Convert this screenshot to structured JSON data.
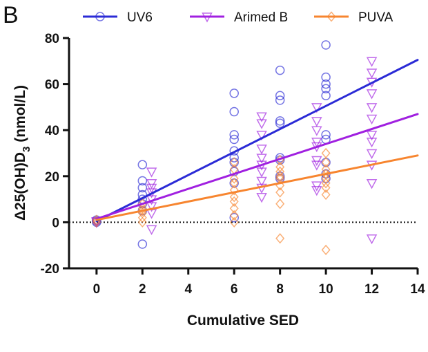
{
  "panel_label": "B",
  "chart_data": {
    "type": "scatter",
    "title": "",
    "xlabel": "Cumulative SED",
    "ylabel_main": "Δ25(OH)D",
    "ylabel_sub": "3",
    "ylabel_unit": " (nmol/L)",
    "xlim": [
      -1.2,
      14
    ],
    "ylim": [
      -20,
      80
    ],
    "xticks": [
      0,
      2,
      4,
      6,
      8,
      10,
      12,
      14
    ],
    "yticks": [
      -20,
      0,
      20,
      40,
      60,
      80
    ],
    "zero_reference_line": true,
    "legend_position": "top",
    "series": [
      {
        "name": "UV6",
        "color": "#2b2bd6",
        "marker": "circle",
        "fit": {
          "slope": 5.0,
          "intercept": 0.5
        },
        "points": [
          [
            0,
            0.5
          ],
          [
            0,
            0
          ],
          [
            0,
            1
          ],
          [
            2,
            25
          ],
          [
            2,
            18
          ],
          [
            2,
            15
          ],
          [
            2,
            12
          ],
          [
            2,
            10
          ],
          [
            2,
            8
          ],
          [
            2,
            5
          ],
          [
            2,
            -9.5
          ],
          [
            6,
            56
          ],
          [
            6,
            48
          ],
          [
            6,
            38
          ],
          [
            6,
            36
          ],
          [
            6,
            31
          ],
          [
            6,
            28
          ],
          [
            6,
            26
          ],
          [
            6,
            22
          ],
          [
            6,
            17
          ],
          [
            6,
            2
          ],
          [
            8,
            66
          ],
          [
            8,
            55
          ],
          [
            8,
            53
          ],
          [
            8,
            44
          ],
          [
            8,
            43
          ],
          [
            8,
            28
          ],
          [
            8,
            27
          ],
          [
            8,
            20
          ],
          [
            8,
            19
          ],
          [
            10,
            77
          ],
          [
            10,
            63
          ],
          [
            10,
            60
          ],
          [
            10,
            58
          ],
          [
            10,
            55
          ],
          [
            10,
            38
          ],
          [
            10,
            36
          ],
          [
            10,
            26
          ],
          [
            10,
            21
          ],
          [
            10,
            19
          ]
        ]
      },
      {
        "name": "Arimed B",
        "color": "#a020e0",
        "marker": "triangle-down",
        "fit": {
          "slope": 3.25,
          "intercept": 1.5
        },
        "points": [
          [
            0,
            0.5
          ],
          [
            0,
            0
          ],
          [
            2.4,
            22
          ],
          [
            2.4,
            17
          ],
          [
            2.4,
            15
          ],
          [
            2.4,
            13
          ],
          [
            2.4,
            10
          ],
          [
            2.4,
            7
          ],
          [
            2.4,
            4
          ],
          [
            2.4,
            -3
          ],
          [
            7.2,
            46
          ],
          [
            7.2,
            43
          ],
          [
            7.2,
            38
          ],
          [
            7.2,
            32
          ],
          [
            7.2,
            28
          ],
          [
            7.2,
            25
          ],
          [
            7.2,
            22
          ],
          [
            7.2,
            18
          ],
          [
            7.2,
            15
          ],
          [
            7.2,
            11
          ],
          [
            9.6,
            50
          ],
          [
            9.6,
            44
          ],
          [
            9.6,
            40
          ],
          [
            9.6,
            35
          ],
          [
            9.6,
            33
          ],
          [
            9.6,
            27
          ],
          [
            9.6,
            25
          ],
          [
            9.6,
            16
          ],
          [
            9.6,
            14
          ],
          [
            12,
            70
          ],
          [
            12,
            65
          ],
          [
            12,
            61
          ],
          [
            12,
            56
          ],
          [
            12,
            50
          ],
          [
            12,
            45
          ],
          [
            12,
            38
          ],
          [
            12,
            35
          ],
          [
            12,
            30
          ],
          [
            12,
            25
          ],
          [
            12,
            17
          ],
          [
            12,
            -7
          ]
        ]
      },
      {
        "name": "PUVA",
        "color": "#f7852f",
        "marker": "diamond",
        "fit": {
          "slope": 2.0,
          "intercept": 1.0
        },
        "points": [
          [
            0,
            0
          ],
          [
            0,
            1
          ],
          [
            2,
            8
          ],
          [
            2,
            6
          ],
          [
            2,
            5
          ],
          [
            2,
            4
          ],
          [
            2,
            2
          ],
          [
            2,
            0
          ],
          [
            6,
            26
          ],
          [
            6,
            23
          ],
          [
            6,
            19
          ],
          [
            6,
            17
          ],
          [
            6,
            14
          ],
          [
            6,
            11
          ],
          [
            6,
            9
          ],
          [
            6,
            6
          ],
          [
            6,
            3
          ],
          [
            6,
            0
          ],
          [
            8,
            27
          ],
          [
            8,
            24
          ],
          [
            8,
            22
          ],
          [
            8,
            20
          ],
          [
            8,
            19
          ],
          [
            8,
            16
          ],
          [
            8,
            13
          ],
          [
            8,
            8
          ],
          [
            8,
            -7
          ],
          [
            10,
            30
          ],
          [
            10,
            26
          ],
          [
            10,
            23
          ],
          [
            10,
            21
          ],
          [
            10,
            19
          ],
          [
            10,
            17
          ],
          [
            10,
            15
          ],
          [
            10,
            12
          ],
          [
            10,
            -12
          ]
        ]
      }
    ]
  }
}
